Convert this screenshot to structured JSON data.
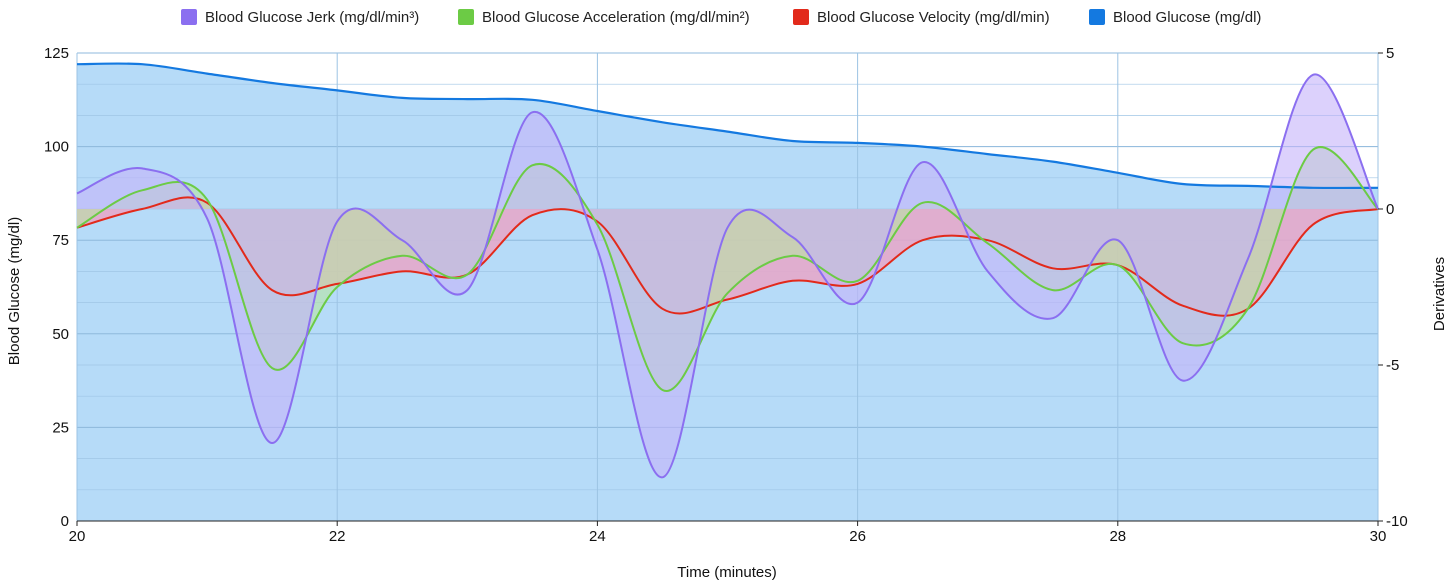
{
  "chart_data": {
    "type": "area",
    "xlabel": "Time (minutes)",
    "ylabel": "Blood Glucose (mg/dl)",
    "y2label": "Derivatives",
    "xlim": [
      20,
      30
    ],
    "ylim": [
      0,
      125
    ],
    "y2lim": [
      -10,
      5
    ],
    "x_ticks": [
      20,
      22,
      24,
      26,
      28,
      30
    ],
    "y_ticks": [
      0,
      25,
      50,
      75,
      100,
      125
    ],
    "y2_ticks": [
      -10,
      -5,
      0,
      5
    ],
    "grid": true,
    "legend_position": "top",
    "series": [
      {
        "name": "Blood Glucose Jerk (mg/dl/min³)",
        "axis": "right",
        "color": "#8B6FF0",
        "fill": "#C4B3FA",
        "x": [
          20,
          20.5,
          21,
          21.5,
          22,
          22.5,
          23,
          23.5,
          24,
          24.5,
          25,
          25.5,
          26,
          26.5,
          27,
          27.5,
          28,
          28.5,
          29,
          29.5,
          30
        ],
        "values": [
          0.5,
          1.3,
          -0.3,
          -7.5,
          -0.4,
          -1.0,
          -2.6,
          3.1,
          -1.3,
          -8.6,
          -0.6,
          -0.9,
          -3.0,
          1.5,
          -2.0,
          -3.5,
          -1.0,
          -5.5,
          -1.6,
          4.3,
          0.0
        ]
      },
      {
        "name": "Blood Glucose Acceleration (mg/dl/min²)",
        "axis": "right",
        "color": "#6CCB45",
        "fill": "#B8E3A3",
        "x": [
          20,
          20.5,
          21,
          21.5,
          22,
          22.5,
          23,
          23.5,
          24,
          24.5,
          25,
          25.5,
          26,
          26.5,
          27,
          27.5,
          28,
          28.5,
          29,
          29.5,
          30
        ],
        "values": [
          -0.6,
          0.6,
          0.3,
          -5.1,
          -2.5,
          -1.5,
          -2.1,
          1.4,
          -0.5,
          -5.8,
          -2.7,
          -1.5,
          -2.3,
          0.2,
          -1.1,
          -2.6,
          -1.8,
          -4.3,
          -3.2,
          1.9,
          0.0
        ]
      },
      {
        "name": "Blood Glucose Velocity (mg/dl/min)",
        "axis": "right",
        "color": "#E22A1B",
        "fill": "#E8A6C8",
        "x": [
          20,
          20.5,
          21,
          21.5,
          22,
          22.5,
          23,
          23.5,
          24,
          24.5,
          25,
          25.5,
          26,
          26.5,
          27,
          27.5,
          28,
          28.5,
          29,
          29.5,
          30
        ],
        "values": [
          -0.6,
          0.0,
          0.2,
          -2.6,
          -2.4,
          -2.0,
          -2.1,
          -0.2,
          -0.4,
          -3.2,
          -2.9,
          -2.3,
          -2.4,
          -1.0,
          -1.0,
          -1.9,
          -1.8,
          -3.1,
          -3.2,
          -0.5,
          0.0
        ]
      },
      {
        "name": "Blood Glucose (mg/dl)",
        "axis": "left",
        "color": "#1479E0",
        "fill": "#B6DBF8",
        "x": [
          20,
          20.5,
          21,
          21.5,
          22,
          22.5,
          23,
          23.5,
          24,
          24.5,
          25,
          25.5,
          26,
          26.5,
          27,
          27.5,
          28,
          28.5,
          29,
          29.5,
          30
        ],
        "values": [
          122,
          122,
          119.5,
          117,
          115,
          113,
          112.7,
          112.5,
          109.5,
          106.5,
          104,
          101.5,
          101,
          100,
          98,
          96,
          93,
          90,
          89.5,
          89,
          89
        ]
      }
    ]
  }
}
